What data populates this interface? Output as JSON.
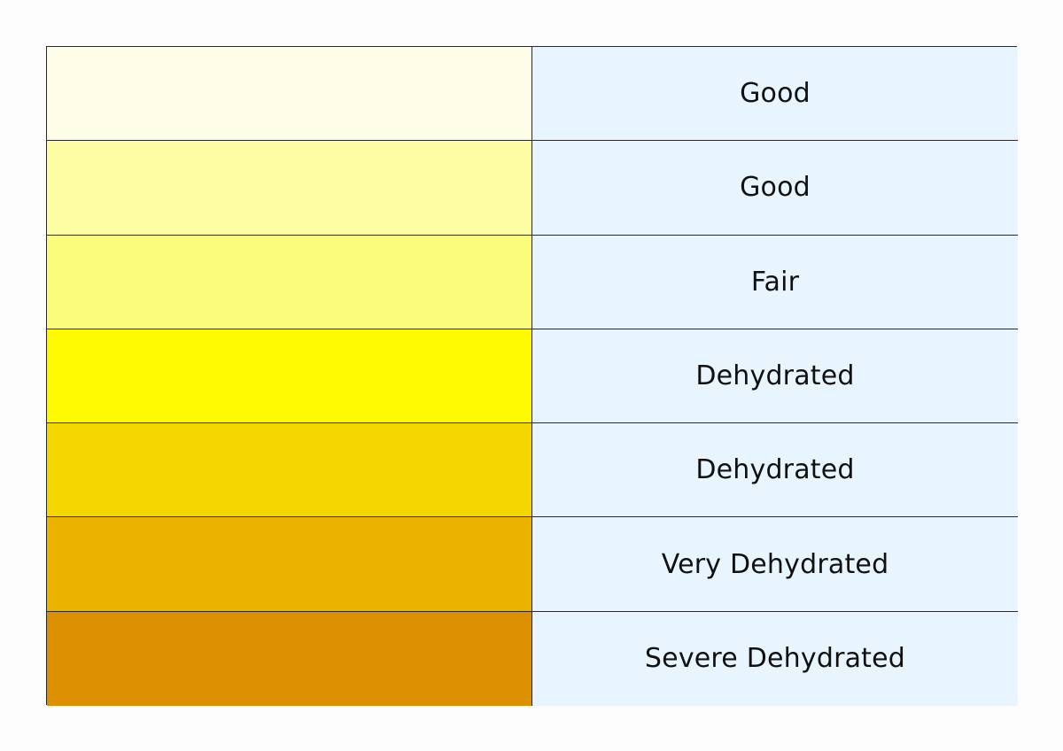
{
  "hydration_chart": {
    "rows": [
      {
        "color": "#fefee8",
        "label": "Good"
      },
      {
        "color": "#fdfda3",
        "label": "Good"
      },
      {
        "color": "#fcfc7c",
        "label": "Fair"
      },
      {
        "color": "#fcf900",
        "label": "Dehydrated"
      },
      {
        "color": "#f4d600",
        "label": "Dehydrated"
      },
      {
        "color": "#ecb200",
        "label": "Very Dehydrated"
      },
      {
        "color": "#dc8f00",
        "label": "Severe Dehydrated"
      }
    ],
    "label_background": "#e8f5fe",
    "border_color": "#2a2a2a"
  }
}
